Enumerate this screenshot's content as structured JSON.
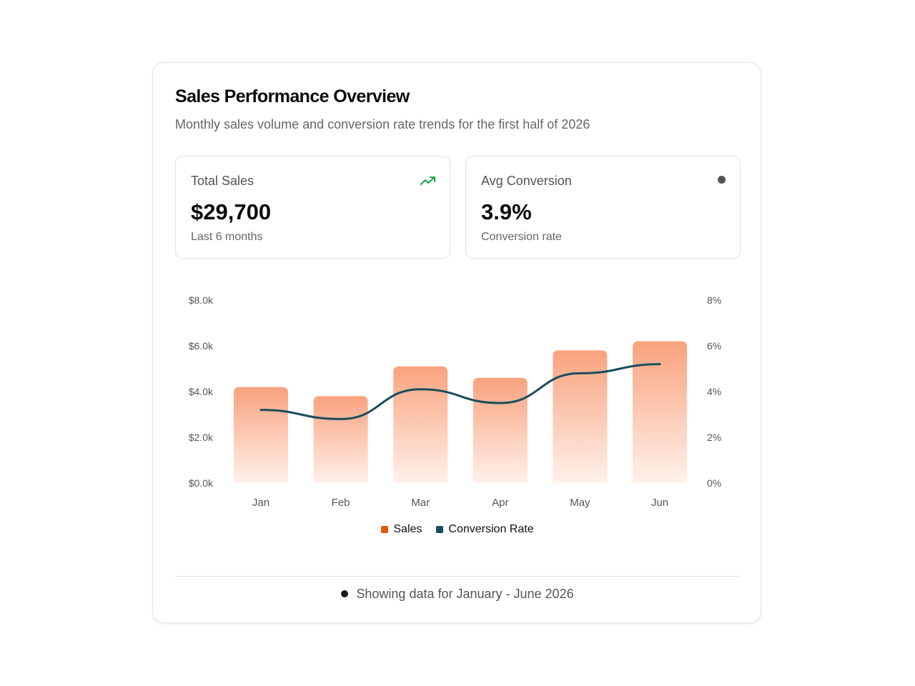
{
  "card": {
    "title": "Sales Performance Overview",
    "subtitle": "Monthly sales volume and conversion rate trends for the first half of 2026"
  },
  "stats": {
    "total_sales": {
      "label": "Total Sales",
      "value": "$29,700",
      "caption": "Last 6 months",
      "icon": "trending-up-icon",
      "icon_color": "#16a34a"
    },
    "avg_conversion": {
      "label": "Avg Conversion",
      "value": "3.9%",
      "caption": "Conversion rate",
      "icon": "dot-icon",
      "icon_color": "#555555"
    }
  },
  "chart_data": {
    "type": "bar",
    "categories": [
      "Jan",
      "Feb",
      "Mar",
      "Apr",
      "May",
      "Jun"
    ],
    "series": [
      {
        "name": "Sales",
        "type": "bar",
        "axis": "left",
        "values": [
          4200,
          3800,
          5100,
          4600,
          5800,
          6200
        ],
        "color": "#f97316"
      },
      {
        "name": "Conversion Rate",
        "type": "line",
        "axis": "right",
        "values": [
          3.2,
          2.8,
          4.1,
          3.5,
          4.8,
          5.2
        ],
        "color": "#164e5c"
      }
    ],
    "y_left": {
      "range": [
        0,
        8000
      ],
      "ticks": [
        "$0.0k",
        "$2.0k",
        "$4.0k",
        "$6.0k",
        "$8.0k"
      ]
    },
    "y_right": {
      "range": [
        0,
        8
      ],
      "ticks": [
        "0%",
        "2%",
        "4%",
        "6%",
        "8%"
      ]
    },
    "grid": false,
    "legend_position": "bottom-center",
    "legend": [
      "Sales",
      "Conversion Rate"
    ]
  },
  "footer": {
    "text": "Showing data for January - June 2026"
  }
}
